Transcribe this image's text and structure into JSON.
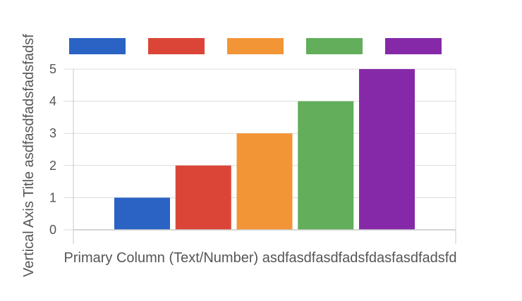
{
  "chart_data": {
    "type": "bar",
    "categories": [
      "",
      "",
      "",
      "",
      ""
    ],
    "series": [
      {
        "name": "",
        "color": "#2a63c4",
        "value": 1
      },
      {
        "name": "",
        "color": "#db4537",
        "value": 2
      },
      {
        "name": "",
        "color": "#f29537",
        "value": 3
      },
      {
        "name": "",
        "color": "#62ae5b",
        "value": 4
      },
      {
        "name": "",
        "color": "#8629a8",
        "value": 5
      }
    ],
    "title": "",
    "xlabel": "Primary Column (Text/Number) asdfasdfasdfadsfdasfasdfadsfd",
    "ylabel": "Vertical Axis Title asdfasdfadsfadsfadsf",
    "ylim": [
      0,
      5
    ],
    "yticks": [
      0,
      1,
      2,
      3,
      4,
      5
    ],
    "grid": true,
    "legend_position": "top"
  }
}
